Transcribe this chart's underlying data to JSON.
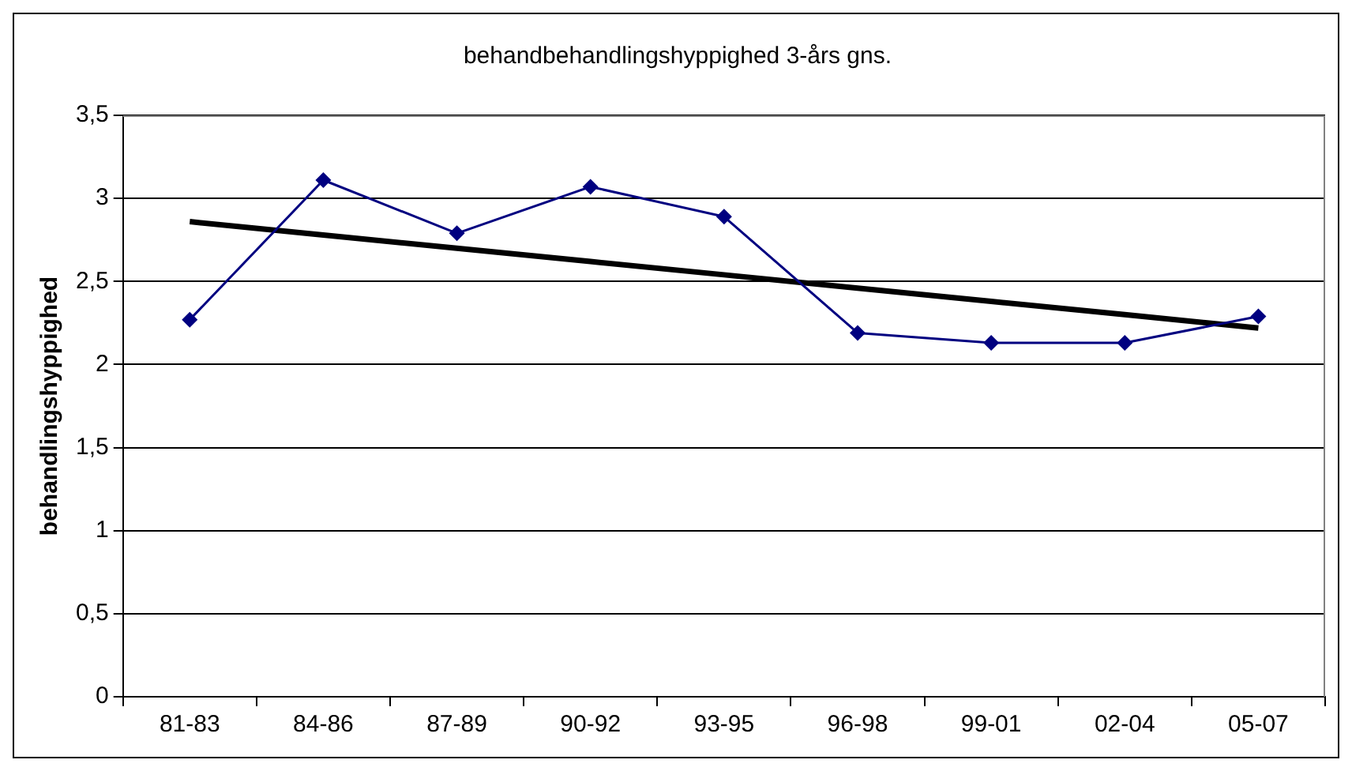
{
  "chart_data": {
    "type": "line",
    "title": "behandbehandlingshyppighed 3-års gns.",
    "ylabel": "behandlingshyppighed",
    "categories": [
      "81-83",
      "84-86",
      "87-89",
      "90-92",
      "93-95",
      "96-98",
      "99-01",
      "02-04",
      "05-07"
    ],
    "series": [
      {
        "color": "#000080",
        "marker": "diamond",
        "values": [
          2.27,
          3.11,
          2.79,
          3.07,
          2.89,
          2.19,
          2.13,
          2.13,
          2.29
        ]
      },
      {
        "type": "line",
        "color": "#000000",
        "marker": "none",
        "values": [
          2.86,
          2.78,
          2.7,
          2.62,
          2.54,
          2.46,
          2.38,
          2.3,
          2.22
        ]
      }
    ],
    "ylim": [
      0,
      3.5
    ],
    "yticks": [
      {
        "value": 0,
        "label": "0"
      },
      {
        "value": 0.5,
        "label": "0,5"
      },
      {
        "value": 1,
        "label": "1"
      },
      {
        "value": 1.5,
        "label": "1,5"
      },
      {
        "value": 2,
        "label": "2"
      },
      {
        "value": 2.5,
        "label": "2,5"
      },
      {
        "value": 3,
        "label": "3"
      },
      {
        "value": 3.5,
        "label": "3,5"
      }
    ],
    "grid": "y",
    "legend": false
  }
}
